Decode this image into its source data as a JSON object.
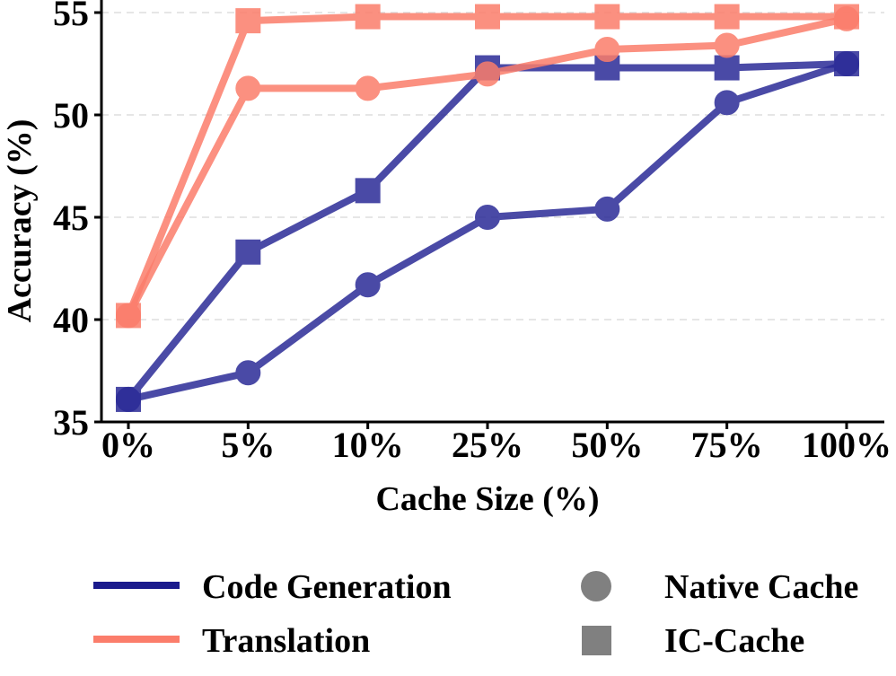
{
  "chart_data": {
    "type": "line",
    "title": "",
    "xlabel": "Cache Size (%)",
    "ylabel": "Accuracy (%)",
    "categories": [
      "0%",
      "5%",
      "10%",
      "25%",
      "50%",
      "75%",
      "100%"
    ],
    "ylim": [
      35,
      55
    ],
    "yticks": [
      35,
      40,
      45,
      50,
      55
    ],
    "grid": "horizontal dashed",
    "series": [
      {
        "name": "Code Generation",
        "cache": "Native Cache",
        "marker": "circle",
        "color": "#2b2b97",
        "values": [
          36.1,
          37.4,
          41.7,
          45.0,
          45.4,
          50.6,
          52.5
        ]
      },
      {
        "name": "Code Generation",
        "cache": "IC-Cache",
        "marker": "square",
        "color": "#2b2b97",
        "values": [
          36.1,
          43.3,
          46.3,
          52.3,
          52.3,
          52.3,
          52.5
        ]
      },
      {
        "name": "Translation",
        "cache": "Native Cache",
        "marker": "circle",
        "color": "#fb7d6b",
        "values": [
          40.2,
          51.3,
          51.3,
          52.0,
          53.2,
          53.4,
          54.7
        ]
      },
      {
        "name": "Translation",
        "cache": "IC-Cache",
        "marker": "square",
        "color": "#fb7d6b",
        "values": [
          40.2,
          54.6,
          54.8,
          54.8,
          54.8,
          54.8,
          54.8
        ]
      }
    ],
    "legend": {
      "position": "bottom",
      "colors": [
        {
          "label": "Code Generation",
          "color": "#1a1a8c"
        },
        {
          "label": "Translation",
          "color": "#fb7d6b"
        }
      ],
      "markers": [
        {
          "label": "Native Cache",
          "marker": "circle",
          "color": "#808080"
        },
        {
          "label": "IC-Cache",
          "marker": "square",
          "color": "#808080"
        }
      ]
    }
  }
}
